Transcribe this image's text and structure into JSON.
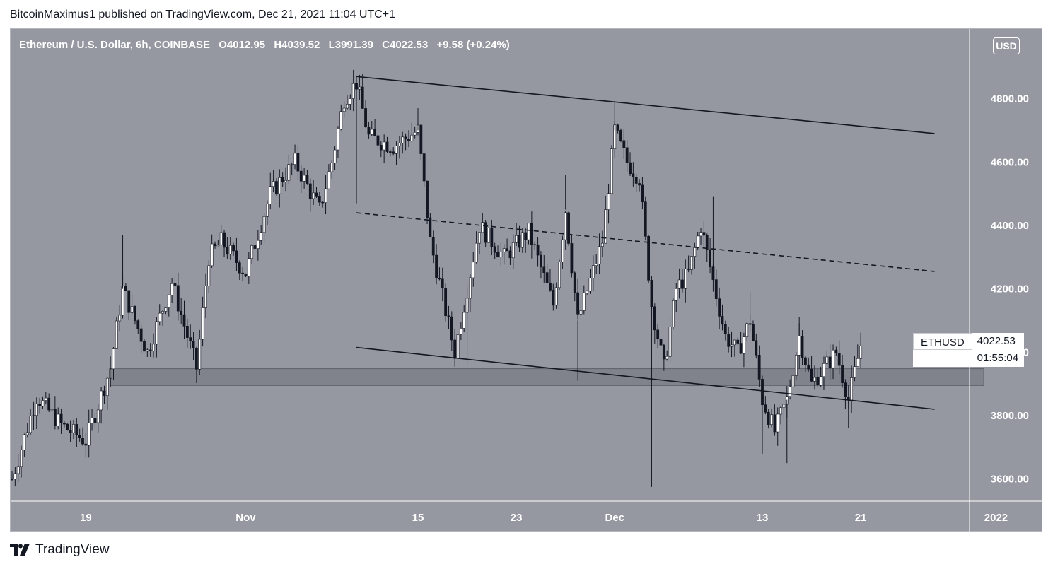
{
  "header": {
    "text": "BitcoinMaximus1 published on TradingView.com, Dec 21, 2021 11:04 UTC+1"
  },
  "legend": {
    "symbol": "Ethereum / U.S. Dollar, 6h, COINBASE",
    "o_label": "O",
    "o_value": "4012.95",
    "h_label": "H",
    "h_value": "4039.52",
    "l_label": "L",
    "l_value": "3991.39",
    "c_label": "C",
    "c_value": "4022.53",
    "change": "+9.58 (+0.24%)"
  },
  "currency_badge": "USD",
  "price_tag": {
    "symbol": "ETHUSD",
    "price": "4022.53",
    "countdown": "01:55:04"
  },
  "footer": {
    "brand": "TradingView"
  },
  "colors": {
    "background": "#9598a1",
    "candle_up": "#ffffff",
    "candle_down": "#131722",
    "trendline": "#131722",
    "support_zone": "#6f727b"
  },
  "chart_data": {
    "type": "candlestick",
    "title": "Ethereum / U.S. Dollar, 6h, COINBASE",
    "ylim": [
      3530,
      5020
    ],
    "y_ticks": [
      "4800.00",
      "4600.00",
      "4400.00",
      "4200.00",
      "4000.00",
      "3800.00",
      "3600.00"
    ],
    "x_ticks": [
      "19",
      "Nov",
      "15",
      "23",
      "Dec",
      "13",
      "21",
      "2022"
    ],
    "price_path": [
      [
        "Oct 13",
        3600
      ],
      [
        "Oct 15",
        3860
      ],
      [
        "Oct 17",
        3770
      ],
      [
        "Oct 19",
        3720
      ],
      [
        "Oct 21",
        3950
      ],
      [
        "Oct 22",
        4200
      ],
      [
        "Oct 24",
        4000
      ],
      [
        "Oct 26",
        4220
      ],
      [
        "Oct 28",
        3950
      ],
      [
        "Oct 29",
        4300
      ],
      [
        "Oct 30",
        4350
      ],
      [
        "Nov 1",
        4250
      ],
      [
        "Nov 3",
        4500
      ],
      [
        "Nov 5",
        4600
      ],
      [
        "Nov 7",
        4450
      ],
      [
        "Nov 8",
        4600
      ],
      [
        "Nov 9",
        4800
      ],
      [
        "Nov 10",
        4850
      ],
      [
        "Nov 11",
        4680
      ],
      [
        "Nov 13",
        4650
      ],
      [
        "Nov 15",
        4700
      ],
      [
        "Nov 16",
        4350
      ],
      [
        "Nov 18",
        4000
      ],
      [
        "Nov 19",
        4200
      ],
      [
        "Nov 20",
        4400
      ],
      [
        "Nov 22",
        4300
      ],
      [
        "Nov 24",
        4380
      ],
      [
        "Nov 26",
        4150
      ],
      [
        "Nov 27",
        4450
      ],
      [
        "Nov 28",
        4100
      ],
      [
        "Nov 30",
        4350
      ],
      [
        "Dec 1",
        4700
      ],
      [
        "Dec 2",
        4600
      ],
      [
        "Dec 3",
        4550
      ],
      [
        "Dec 4",
        4150
      ],
      [
        "Dec 5",
        3950
      ],
      [
        "Dec 6",
        4200
      ],
      [
        "Dec 7",
        4250
      ],
      [
        "Dec 8",
        4400
      ],
      [
        "Dec 10",
        4050
      ],
      [
        "Dec 11",
        4000
      ],
      [
        "Dec 12",
        4100
      ],
      [
        "Dec 13",
        3850
      ],
      [
        "Dec 14",
        3750
      ],
      [
        "Dec 15",
        3850
      ],
      [
        "Dec 16",
        4050
      ],
      [
        "Dec 17",
        3900
      ],
      [
        "Dec 18",
        3950
      ],
      [
        "Dec 19",
        4000
      ],
      [
        "Dec 20",
        3850
      ],
      [
        "Dec 21",
        4022.53
      ]
    ],
    "spike_lows": [
      [
        "Oct 21",
        3890
      ],
      [
        "Nov 10",
        4470
      ],
      [
        "Nov 19",
        3960
      ],
      [
        "Nov 28",
        3910
      ],
      [
        "Dec 4",
        3575
      ],
      [
        "Dec 13",
        3680
      ],
      [
        "Dec 15",
        3650
      ],
      [
        "Dec 20",
        3760
      ]
    ],
    "spike_highs": [
      [
        "Oct 22",
        4370
      ],
      [
        "Nov 10",
        4870
      ],
      [
        "Nov 15",
        4770
      ],
      [
        "Nov 27",
        4560
      ],
      [
        "Dec 1",
        4790
      ],
      [
        "Dec 9",
        4490
      ],
      [
        "Dec 12",
        4190
      ],
      [
        "Dec 16",
        4110
      ]
    ],
    "descending_channel": {
      "upper": [
        [
          "Nov 10",
          4870
        ],
        [
          "Dec 27",
          4690
        ]
      ],
      "middle_dashed": [
        [
          "Nov 10",
          4440
        ],
        [
          "Dec 27",
          4255
        ]
      ],
      "lower": [
        [
          "Nov 10",
          4015
        ],
        [
          "Dec 27",
          3820
        ]
      ]
    },
    "support_zone": {
      "from": "Oct 21",
      "to": "Dec 31",
      "low": 3895,
      "high": 3948
    },
    "last_price": 4022.53
  }
}
